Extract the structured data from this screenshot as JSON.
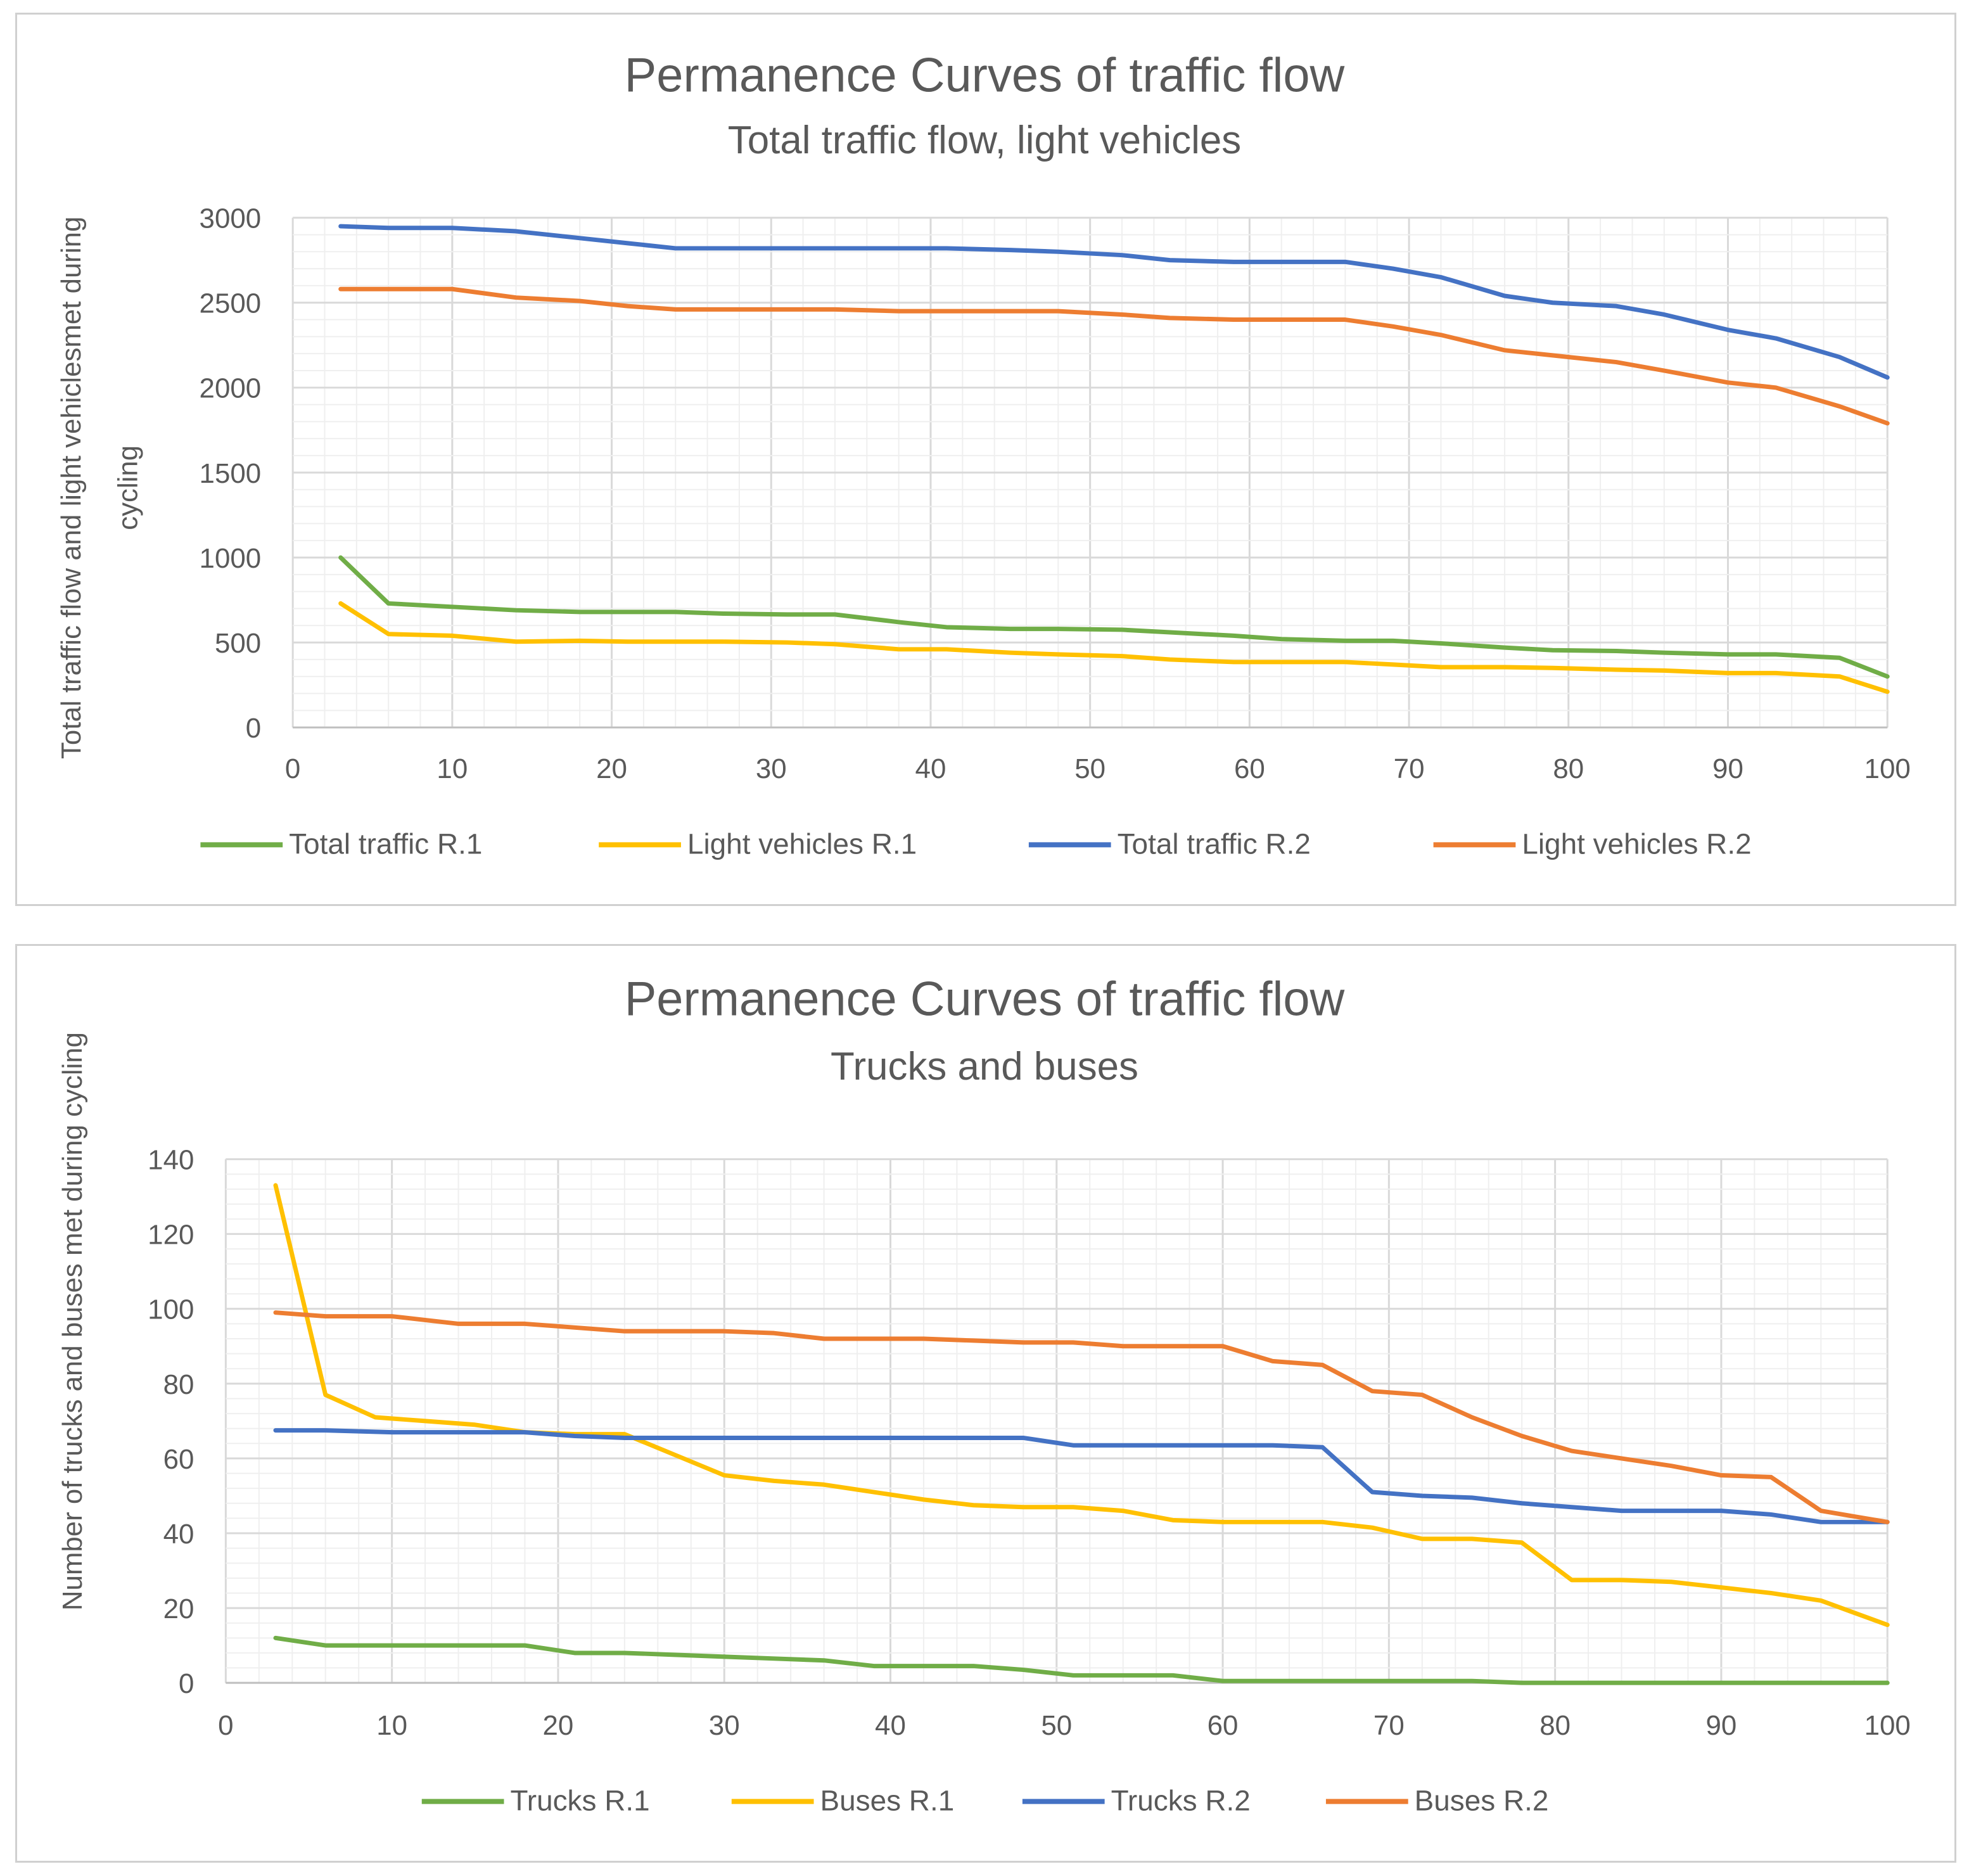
{
  "chart_data": [
    {
      "type": "line",
      "title": "Permanence Curves of traffic flow",
      "subtitle": "Total traffic flow, light vehicles",
      "xlabel": "",
      "ylabel_lines": [
        "Total traffic flow and light vehiclesmet during",
        "cycling"
      ],
      "xlim": [
        0,
        100
      ],
      "ylim": [
        0,
        3000
      ],
      "xticks": [
        0,
        10,
        20,
        30,
        40,
        50,
        60,
        70,
        80,
        90,
        100
      ],
      "yticks": [
        0,
        500,
        1000,
        1500,
        2000,
        2500,
        3000
      ],
      "grid": true,
      "legend_position": "bottom",
      "series": [
        {
          "name": "Total traffic R.1",
          "color": "#70ad47",
          "x": [
            3,
            6,
            10,
            14,
            18,
            21,
            24,
            27,
            31,
            34,
            38,
            41,
            45,
            48,
            52,
            55,
            59,
            62,
            66,
            69,
            72,
            76,
            79,
            83,
            86,
            90,
            93,
            97,
            100
          ],
          "y": [
            1000,
            730,
            710,
            690,
            680,
            680,
            680,
            670,
            665,
            665,
            620,
            590,
            580,
            580,
            575,
            560,
            540,
            520,
            510,
            510,
            495,
            470,
            455,
            450,
            440,
            430,
            430,
            410,
            300
          ]
        },
        {
          "name": "Light vehicles R.1",
          "color": "#ffc000",
          "x": [
            3,
            6,
            10,
            14,
            18,
            21,
            24,
            27,
            31,
            34,
            38,
            41,
            45,
            48,
            52,
            55,
            59,
            62,
            66,
            69,
            72,
            76,
            79,
            83,
            86,
            90,
            93,
            97,
            100
          ],
          "y": [
            730,
            550,
            540,
            505,
            510,
            505,
            505,
            505,
            500,
            490,
            460,
            460,
            440,
            430,
            420,
            400,
            385,
            385,
            385,
            370,
            355,
            355,
            350,
            340,
            335,
            320,
            320,
            300,
            210
          ]
        },
        {
          "name": "Total traffic R.2",
          "color": "#4472c4",
          "x": [
            3,
            6,
            10,
            14,
            18,
            21,
            24,
            27,
            31,
            34,
            38,
            41,
            45,
            48,
            52,
            55,
            59,
            62,
            66,
            69,
            72,
            76,
            79,
            83,
            86,
            90,
            93,
            97,
            100
          ],
          "y": [
            2950,
            2940,
            2940,
            2920,
            2880,
            2850,
            2820,
            2820,
            2820,
            2820,
            2820,
            2820,
            2810,
            2800,
            2780,
            2750,
            2740,
            2740,
            2740,
            2700,
            2650,
            2540,
            2500,
            2480,
            2430,
            2340,
            2290,
            2180,
            2060
          ]
        },
        {
          "name": "Light vehicles R.2",
          "color": "#ed7d31",
          "x": [
            3,
            6,
            10,
            14,
            18,
            21,
            24,
            27,
            31,
            34,
            38,
            41,
            45,
            48,
            52,
            55,
            59,
            62,
            66,
            69,
            72,
            76,
            79,
            83,
            86,
            90,
            93,
            97,
            100
          ],
          "y": [
            2580,
            2580,
            2580,
            2530,
            2510,
            2480,
            2460,
            2460,
            2460,
            2460,
            2450,
            2450,
            2450,
            2450,
            2430,
            2410,
            2400,
            2400,
            2400,
            2360,
            2310,
            2220,
            2190,
            2150,
            2100,
            2030,
            2000,
            1890,
            1790
          ]
        }
      ]
    },
    {
      "type": "line",
      "title": "Permanence Curves of traffic flow",
      "subtitle": "Trucks and buses",
      "xlabel": "",
      "ylabel_lines": [
        "Number of trucks and buses met during cycling"
      ],
      "xlim": [
        0,
        100
      ],
      "ylim": [
        0,
        140
      ],
      "xticks": [
        0,
        10,
        20,
        30,
        40,
        50,
        60,
        70,
        80,
        90,
        100
      ],
      "yticks": [
        0,
        20,
        40,
        60,
        80,
        100,
        120,
        140
      ],
      "grid": true,
      "legend_position": "bottom",
      "series": [
        {
          "name": "Trucks R.1",
          "color": "#70ad47",
          "x": [
            3,
            6,
            10,
            14,
            18,
            21,
            24,
            27,
            30,
            33,
            36,
            39,
            42,
            45,
            48,
            51,
            54,
            57,
            60,
            63,
            66,
            69,
            72,
            75,
            78,
            81,
            84,
            87,
            90,
            93,
            96,
            100
          ],
          "y": [
            12,
            10,
            10,
            10,
            10,
            8,
            8,
            7.5,
            7,
            6.5,
            6,
            4.5,
            4.5,
            4.5,
            3.5,
            2,
            2,
            2,
            0.5,
            0.5,
            0.5,
            0.5,
            0.5,
            0.5,
            0,
            0,
            0,
            0,
            0,
            0,
            0,
            0
          ]
        },
        {
          "name": "Buses R.1",
          "color": "#ffc000",
          "x": [
            3,
            6,
            9,
            12,
            15,
            18,
            21,
            24,
            27,
            30,
            33,
            36,
            39,
            42,
            45,
            48,
            51,
            54,
            57,
            60,
            63,
            66,
            69,
            72,
            75,
            78,
            81,
            84,
            87,
            90,
            93,
            96,
            100
          ],
          "y": [
            133,
            77,
            71,
            70,
            69,
            67,
            66.5,
            66.5,
            61,
            55.5,
            54,
            53,
            51,
            49,
            47.5,
            47,
            47,
            46,
            43.5,
            43,
            43,
            43,
            41.5,
            38.5,
            38.5,
            37.5,
            27.5,
            27.5,
            27,
            25.5,
            24,
            22,
            15.5
          ]
        },
        {
          "name": "Trucks R.2",
          "color": "#4472c4",
          "x": [
            3,
            6,
            10,
            14,
            18,
            21,
            24,
            27,
            30,
            33,
            36,
            39,
            42,
            45,
            48,
            51,
            54,
            57,
            60,
            63,
            66,
            69,
            72,
            75,
            78,
            81,
            84,
            87,
            90,
            93,
            96,
            100
          ],
          "y": [
            67.5,
            67.5,
            67,
            67,
            67,
            66,
            65.5,
            65.5,
            65.5,
            65.5,
            65.5,
            65.5,
            65.5,
            65.5,
            65.5,
            63.5,
            63.5,
            63.5,
            63.5,
            63.5,
            63,
            51,
            50,
            49.5,
            48,
            47,
            46,
            46,
            46,
            45,
            43,
            43
          ]
        },
        {
          "name": "Buses R.2",
          "color": "#ed7d31",
          "x": [
            3,
            6,
            10,
            14,
            18,
            21,
            24,
            27,
            30,
            33,
            36,
            39,
            42,
            45,
            48,
            51,
            54,
            57,
            60,
            63,
            66,
            69,
            72,
            75,
            78,
            81,
            84,
            87,
            90,
            93,
            96,
            100
          ],
          "y": [
            99,
            98,
            98,
            96,
            96,
            95,
            94,
            94,
            94,
            93.5,
            92,
            92,
            92,
            91.5,
            91,
            91,
            90,
            90,
            90,
            86,
            85,
            78,
            77,
            71,
            66,
            62,
            60,
            58,
            55.5,
            55,
            46,
            43
          ]
        }
      ]
    }
  ]
}
